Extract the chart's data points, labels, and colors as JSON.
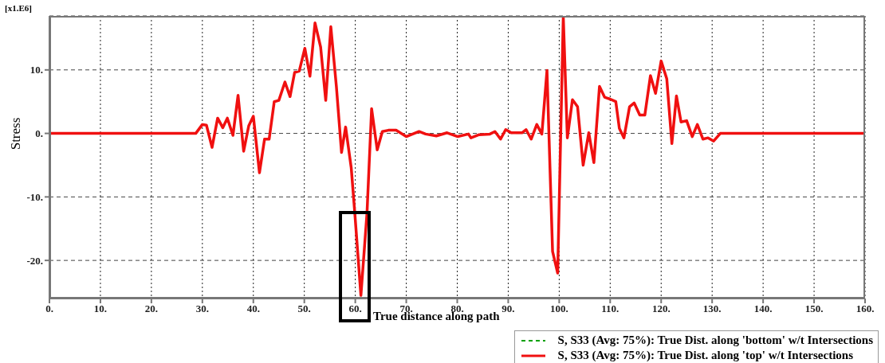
{
  "chart_data": {
    "type": "line",
    "xlabel": "True distance along path",
    "ylabel": "Stress",
    "annotations": [
      "[x1.E6]"
    ],
    "x": [
      0,
      28.7,
      30,
      30.8,
      31.9,
      33,
      34,
      34.9,
      36,
      37,
      38.1,
      39.1,
      40,
      41.2,
      42.2,
      43.1,
      44.1,
      45,
      46.2,
      47.2,
      48.1,
      49,
      50.1,
      51.1,
      52.1,
      53.2,
      54.2,
      55.2,
      56.3,
      57.3,
      58.1,
      59.2,
      59.9,
      61.1,
      62.3,
      63.2,
      64.3,
      65.3,
      66.5,
      68,
      70,
      72.5,
      73.8,
      75.9,
      78,
      80.1,
      82.2,
      82.7,
      84.3,
      86.4,
      87.4,
      88.5,
      89.5,
      90.6,
      92.7,
      93.5,
      94.5,
      95.6,
      96.6,
      97.6,
      98.7,
      99.7,
      100.8,
      101.6,
      102.6,
      103.6,
      104.7,
      105.8,
      106.8,
      107.9,
      108.9,
      110,
      111.1,
      111.8,
      112.7,
      113.8,
      114.7,
      115.8,
      116.8,
      117.9,
      118.9,
      120,
      121.1,
      122.1,
      123,
      123.9,
      125,
      126.1,
      127.1,
      128.2,
      129.2,
      130.3,
      131.6,
      160
    ],
    "series": [
      {
        "name": "S, S33 (Avg: 75%): True Dist. along 'bottom' w/t Intersections",
        "color": "#00a000",
        "line_style": "dashed",
        "values": [
          null,
          null,
          null,
          null,
          null,
          null,
          null,
          null,
          null,
          null,
          null,
          null,
          null,
          null,
          null,
          null,
          null,
          null,
          null,
          null,
          null,
          null,
          null,
          null,
          null,
          null,
          null,
          null,
          null,
          null,
          null,
          null,
          null,
          null,
          null,
          null,
          null,
          null,
          null,
          null,
          null,
          null,
          null,
          null,
          null,
          null,
          null,
          null,
          null,
          null,
          null,
          null,
          null,
          null,
          null,
          null,
          null,
          null,
          null,
          null,
          null,
          null,
          null,
          null,
          null,
          null,
          null,
          null,
          null,
          null,
          null,
          null,
          null,
          null,
          null,
          null,
          null,
          null,
          null,
          null,
          null,
          null,
          null,
          null,
          null,
          null,
          null,
          null,
          null,
          null,
          null,
          null,
          null,
          null
        ]
      },
      {
        "name": "S, S33 (Avg: 75%): True Dist. along 'top' w/t Intersections",
        "color": "#f01010",
        "line_style": "solid",
        "values": [
          0,
          0,
          1.4,
          1.3,
          -2.2,
          2.4,
          0.9,
          2.4,
          -0.3,
          6,
          -2.8,
          1.2,
          2.7,
          -6.2,
          -0.9,
          -0.9,
          5,
          5.2,
          8.1,
          5.8,
          9.6,
          9.8,
          13.4,
          9,
          17.4,
          13.6,
          5.2,
          16.8,
          7.3,
          -3,
          1,
          -5.4,
          -12.5,
          -25.5,
          -12.5,
          3.9,
          -2.6,
          0.3,
          0.5,
          0.5,
          -0.5,
          0.3,
          -0.1,
          -0.4,
          0.1,
          -0.5,
          -0.1,
          -0.7,
          -0.2,
          -0.1,
          0.3,
          -0.9,
          0.6,
          0.1,
          0.1,
          0.6,
          -0.9,
          1.4,
          -0.1,
          9.9,
          -18.6,
          -22,
          18.4,
          -0.7,
          5.3,
          4.2,
          -5,
          0.1,
          -4.6,
          7.4,
          5.7,
          5.4,
          5,
          0.8,
          -0.7,
          4.2,
          4.8,
          2.9,
          2.9,
          9.1,
          6.3,
          11.4,
          8.6,
          -1.6,
          5.9,
          1.8,
          2,
          -0.5,
          1.4,
          -0.9,
          -0.7,
          -1.2,
          0,
          0
        ]
      }
    ],
    "xlim": [
      0,
      160
    ],
    "xticks": [
      {
        "value": 0,
        "label": "0."
      },
      {
        "value": 10,
        "label": "10."
      },
      {
        "value": 20,
        "label": "20."
      },
      {
        "value": 30,
        "label": "30."
      },
      {
        "value": 40,
        "label": "40."
      },
      {
        "value": 50,
        "label": "50."
      },
      {
        "value": 60,
        "label": "60."
      },
      {
        "value": 70,
        "label": "70."
      },
      {
        "value": 80,
        "label": "80."
      },
      {
        "value": 90,
        "label": "90."
      },
      {
        "value": 100,
        "label": "100."
      },
      {
        "value": 110,
        "label": "110."
      },
      {
        "value": 120,
        "label": "120."
      },
      {
        "value": 130,
        "label": "130."
      },
      {
        "value": 140,
        "label": "140."
      },
      {
        "value": 150,
        "label": "150."
      },
      {
        "value": 160,
        "label": "160."
      }
    ],
    "ylim": [
      -26,
      18.5
    ],
    "yticks": [
      {
        "value": -20,
        "label": "-20."
      },
      {
        "value": -10,
        "label": "-10."
      },
      {
        "value": 0,
        "label": "0."
      },
      {
        "value": 10,
        "label": "10."
      }
    ],
    "grid": true,
    "legend": "bottom right",
    "marker": "none"
  }
}
